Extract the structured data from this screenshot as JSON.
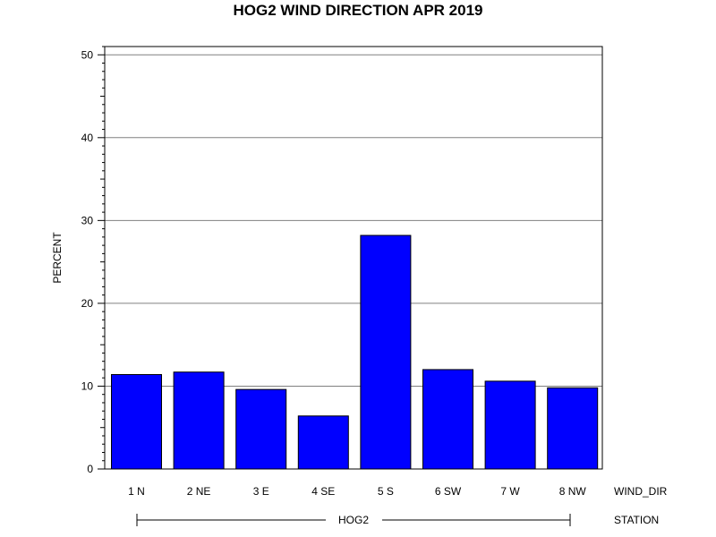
{
  "chart_data": {
    "type": "bar",
    "title": "HOG2 WIND DIRECTION APR 2019",
    "ylabel": "PERCENT",
    "xlabel": "WIND_DIR",
    "group_axis_label": "STATION",
    "group_label": "HOG2",
    "categories": [
      "1 N",
      "2 NE",
      "3 E",
      "4 SE",
      "5 S",
      "6 SW",
      "7 W",
      "8 NW"
    ],
    "values": [
      11.4,
      11.7,
      9.6,
      6.4,
      28.2,
      12.0,
      10.6,
      9.8
    ],
    "ylim": [
      0,
      51
    ],
    "yticks": [
      0,
      10,
      20,
      30,
      40,
      50
    ],
    "grid": true,
    "bar_color": "#0000ff"
  }
}
